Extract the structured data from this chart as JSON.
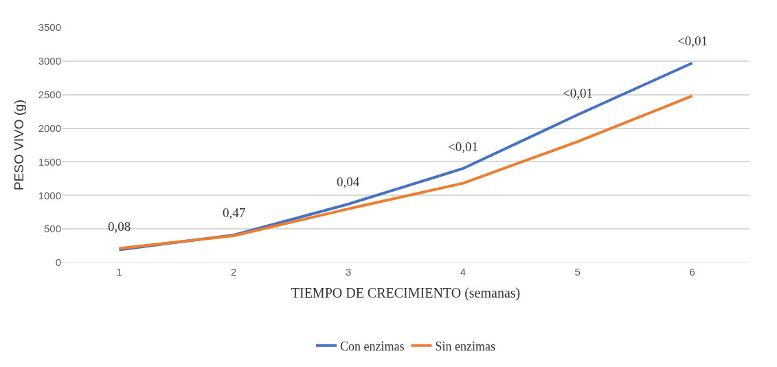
{
  "chart_data": {
    "type": "line",
    "xlabel": "TIEMPO DE CRECIMIENTO (semanas)",
    "ylabel": "PESO VIVO (g)",
    "categories": [
      "1",
      "2",
      "3",
      "4",
      "5",
      "6"
    ],
    "series": [
      {
        "name": "Con enzimas",
        "color": "#4472c4",
        "values": [
          190,
          410,
          870,
          1400,
          2200,
          2970
        ]
      },
      {
        "name": "Sin enzimas",
        "color": "#ed7d31",
        "values": [
          210,
          400,
          800,
          1180,
          1800,
          2480
        ]
      }
    ],
    "ylim": [
      0,
      3500
    ],
    "yticks": [
      0,
      500,
      1000,
      1500,
      2000,
      2500,
      3000,
      3500
    ],
    "grid": "y",
    "legend": "bottom",
    "marker": "none",
    "line_style": "solid",
    "annotations": [
      "0,08",
      "0,47",
      "0,04",
      "<0,01",
      "<0,01",
      "<0,01"
    ]
  }
}
